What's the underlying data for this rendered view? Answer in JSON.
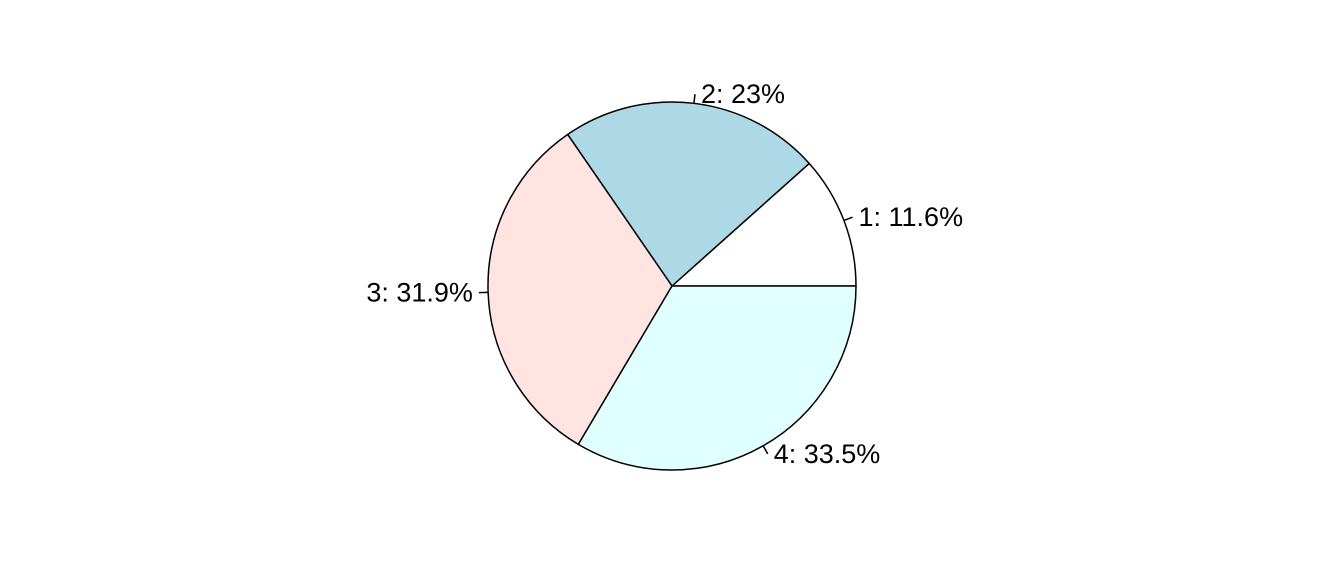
{
  "chart_data": {
    "type": "pie",
    "start_angle_deg": 0,
    "direction": "counterclockwise",
    "slices": [
      {
        "category": "1",
        "percent": 11.6,
        "label": "1: 11.6%",
        "color": "#ffffff"
      },
      {
        "category": "2",
        "percent": 23,
        "label": "2: 23%",
        "color": "#add8e6"
      },
      {
        "category": "3",
        "percent": 31.9,
        "label": "3: 31.9%",
        "color": "#ffe4e1"
      },
      {
        "category": "4",
        "percent": 33.5,
        "label": "4: 33.5%",
        "color": "#e0ffff"
      }
    ]
  }
}
